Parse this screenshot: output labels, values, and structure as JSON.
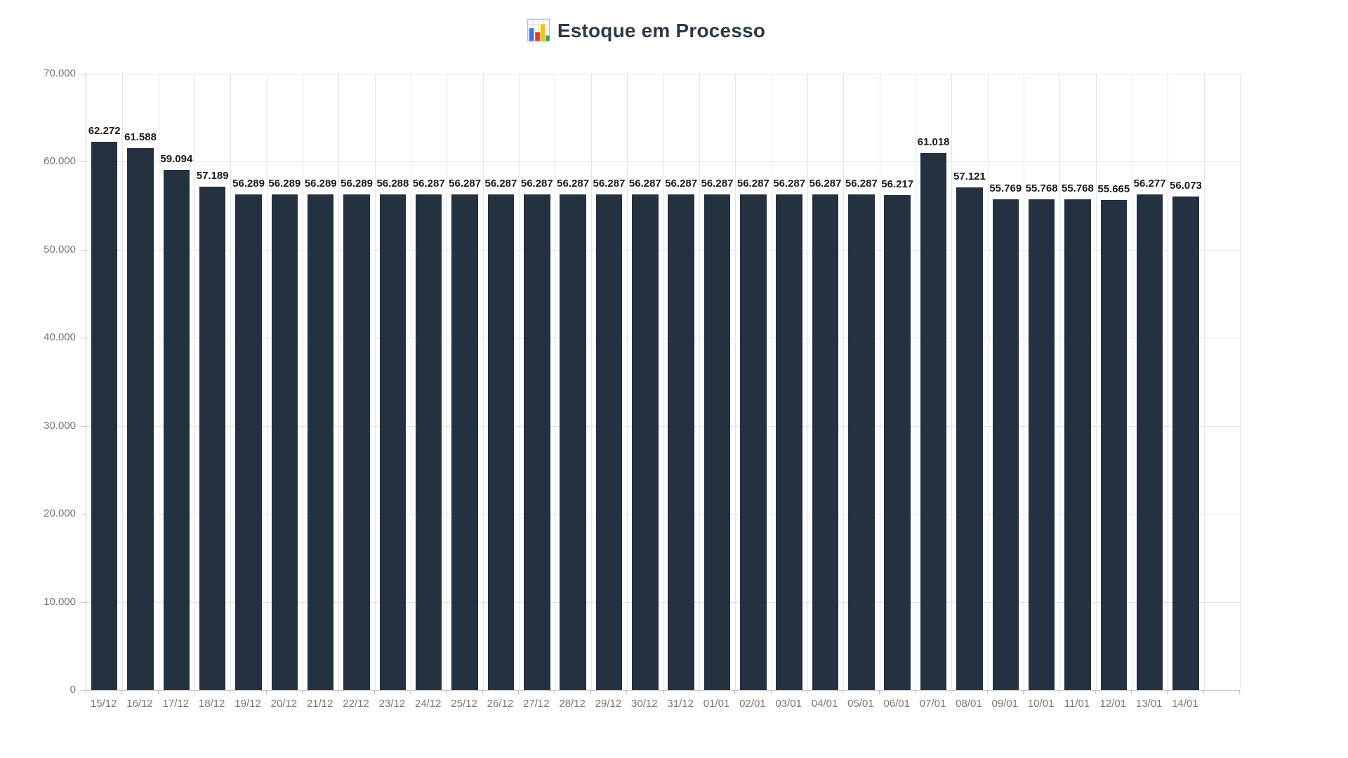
{
  "page": {
    "background": "#ffffff"
  },
  "header": {
    "title": "Estoque em Processo",
    "icon": "bar-chart-emoji"
  },
  "chart_data": {
    "type": "bar",
    "title": "Estoque em Processo",
    "categories": [
      "15/12",
      "16/12",
      "17/12",
      "18/12",
      "19/12",
      "20/12",
      "21/12",
      "22/12",
      "23/12",
      "24/12",
      "25/12",
      "26/12",
      "27/12",
      "28/12",
      "29/12",
      "30/12",
      "31/12",
      "01/01",
      "02/01",
      "03/01",
      "04/01",
      "05/01",
      "06/01",
      "07/01",
      "08/01",
      "09/01",
      "10/01",
      "11/01",
      "12/01",
      "13/01",
      "14/01"
    ],
    "values": [
      62272,
      61588,
      59094,
      57189,
      56289,
      56289,
      56289,
      56289,
      56288,
      56287,
      56287,
      56287,
      56287,
      56287,
      56287,
      56287,
      56287,
      56287,
      56287,
      56287,
      56287,
      56287,
      56217,
      61018,
      57121,
      55769,
      55768,
      55768,
      55665,
      56277,
      56073
    ],
    "value_labels": [
      "62.272",
      "61.588",
      "59.094",
      "57.189",
      "56.289",
      "56.289",
      "56.289",
      "56.289",
      "56.288",
      "56.287",
      "56.287",
      "56.287",
      "56.287",
      "56.287",
      "56.287",
      "56.287",
      "56.287",
      "56.287",
      "56.287",
      "56.287",
      "56.287",
      "56.287",
      "56.217",
      "61.018",
      "57.121",
      "55.769",
      "55.768",
      "55.768",
      "55.665",
      "56.277",
      "56.073"
    ],
    "xlabel": "",
    "ylabel": "",
    "ylim": [
      0,
      70000
    ],
    "ytick_labels": [
      "0",
      "10.000",
      "20.000",
      "30.000",
      "40.000",
      "50.000",
      "60.000",
      "70.000"
    ],
    "grid": true,
    "legend": "none",
    "bar_color": "#233140",
    "grid_color": "#e4e4e4",
    "axis_line_color": "#c5c5c5",
    "tick_text_color": "#757575",
    "value_label_color": "#1b1b1b",
    "title_color": "#2d3a46"
  }
}
